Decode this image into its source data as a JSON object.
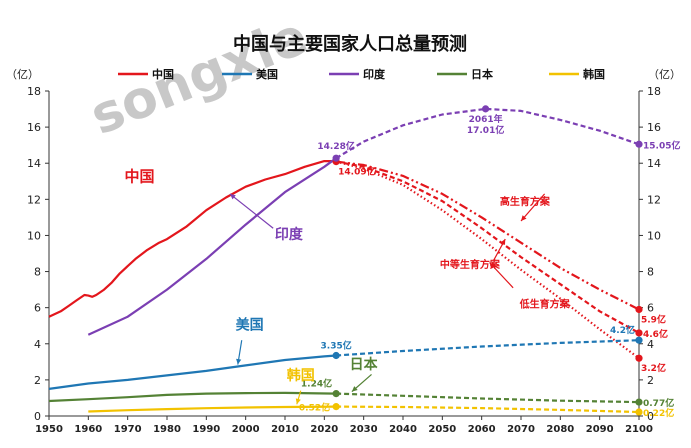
{
  "chart_data": {
    "type": "line",
    "title": "中国与主要国家人口总量预测",
    "unit_left": "（亿）",
    "unit_right": "（亿）",
    "watermark": "songxie",
    "x_range": [
      1950,
      2100
    ],
    "x_ticks": [
      1950,
      1960,
      1970,
      1980,
      1990,
      2000,
      2010,
      2020,
      2030,
      2040,
      2050,
      2060,
      2070,
      2080,
      2090,
      2100
    ],
    "y_range": [
      0,
      18
    ],
    "y_ticks": [
      0,
      2,
      4,
      6,
      8,
      10,
      12,
      14,
      16,
      18
    ],
    "grid": false,
    "legend_position": "top",
    "legend": [
      {
        "label": "中国",
        "color": "#e3161c"
      },
      {
        "label": "美国",
        "color": "#1f77b4"
      },
      {
        "label": "印度",
        "color": "#7b3fb3"
      },
      {
        "label": "日本",
        "color": "#548235"
      },
      {
        "label": "韩国",
        "color": "#f2c200"
      }
    ],
    "series": [
      {
        "name": "中国",
        "color": "#e3161c",
        "style": "solid",
        "x": [
          1950,
          1953,
          1955,
          1957,
          1959,
          1960,
          1961,
          1962,
          1964,
          1966,
          1968,
          1970,
          1972,
          1975,
          1978,
          1980,
          1985,
          1990,
          1995,
          2000,
          2005,
          2010,
          2015,
          2020,
          2022,
          2023
        ],
        "y": [
          5.5,
          5.8,
          6.1,
          6.4,
          6.7,
          6.67,
          6.6,
          6.7,
          7.0,
          7.4,
          7.9,
          8.3,
          8.7,
          9.2,
          9.6,
          9.8,
          10.5,
          11.4,
          12.1,
          12.7,
          13.1,
          13.4,
          13.8,
          14.12,
          14.12,
          14.09
        ]
      },
      {
        "name": "高生育方案",
        "color": "#e3161c",
        "style": "dashdot",
        "x": [
          2023,
          2030,
          2040,
          2050,
          2060,
          2070,
          2080,
          2090,
          2100
        ],
        "y": [
          14.09,
          13.9,
          13.3,
          12.3,
          11.0,
          9.6,
          8.2,
          7.0,
          5.9
        ]
      },
      {
        "name": "中等生育方案",
        "color": "#e3161c",
        "style": "dashed",
        "x": [
          2023,
          2030,
          2040,
          2050,
          2060,
          2070,
          2080,
          2090,
          2100
        ],
        "y": [
          14.09,
          13.8,
          13.0,
          11.9,
          10.4,
          8.8,
          7.3,
          5.8,
          4.6
        ]
      },
      {
        "name": "低生育方案",
        "color": "#e3161c",
        "style": "dotted",
        "x": [
          2023,
          2030,
          2040,
          2050,
          2060,
          2070,
          2080,
          2090,
          2100
        ],
        "y": [
          14.09,
          13.7,
          12.8,
          11.4,
          9.8,
          8.1,
          6.5,
          4.8,
          3.2
        ]
      },
      {
        "name": "美国",
        "color": "#1f77b4",
        "style": "solid",
        "x": [
          1950,
          1960,
          1970,
          1980,
          1990,
          2000,
          2010,
          2020,
          2023
        ],
        "y": [
          1.5,
          1.8,
          2.0,
          2.25,
          2.5,
          2.8,
          3.1,
          3.3,
          3.35
        ]
      },
      {
        "name": "美国预测",
        "color": "#1f77b4",
        "style": "dashed",
        "x": [
          2023,
          2040,
          2060,
          2080,
          2100
        ],
        "y": [
          3.35,
          3.6,
          3.85,
          4.05,
          4.2
        ]
      },
      {
        "name": "印度",
        "color": "#7b3fb3",
        "style": "solid",
        "x": [
          1960,
          1970,
          1980,
          1990,
          2000,
          2010,
          2020,
          2023
        ],
        "y": [
          4.5,
          5.5,
          7.0,
          8.7,
          10.6,
          12.4,
          13.8,
          14.28
        ]
      },
      {
        "name": "印度预测",
        "color": "#7b3fb3",
        "style": "dashed",
        "x": [
          2023,
          2030,
          2040,
          2050,
          2061,
          2070,
          2080,
          2090,
          2100
        ],
        "y": [
          14.28,
          15.2,
          16.1,
          16.7,
          17.01,
          16.9,
          16.4,
          15.8,
          15.05
        ]
      },
      {
        "name": "日本",
        "color": "#548235",
        "style": "solid",
        "x": [
          1950,
          1960,
          1970,
          1980,
          1990,
          2000,
          2010,
          2023
        ],
        "y": [
          0.83,
          0.93,
          1.04,
          1.17,
          1.24,
          1.27,
          1.28,
          1.24
        ]
      },
      {
        "name": "日本预测",
        "color": "#548235",
        "style": "dashed",
        "x": [
          2023,
          2040,
          2060,
          2080,
          2100
        ],
        "y": [
          1.24,
          1.12,
          0.97,
          0.85,
          0.77
        ]
      },
      {
        "name": "韩国",
        "color": "#f2c200",
        "style": "solid",
        "x": [
          1960,
          1970,
          1980,
          1990,
          2000,
          2010,
          2023
        ],
        "y": [
          0.25,
          0.32,
          0.38,
          0.43,
          0.47,
          0.5,
          0.52
        ]
      },
      {
        "name": "韩国预测",
        "color": "#f2c200",
        "style": "dashed",
        "x": [
          2023,
          2040,
          2060,
          2080,
          2100
        ],
        "y": [
          0.52,
          0.5,
          0.44,
          0.34,
          0.22
        ]
      }
    ],
    "markers": [
      {
        "x": 2023,
        "y": 14.09,
        "color": "#e3161c"
      },
      {
        "x": 2023,
        "y": 14.28,
        "color": "#7b3fb3"
      },
      {
        "x": 2061,
        "y": 17.01,
        "color": "#7b3fb3"
      },
      {
        "x": 2100,
        "y": 15.05,
        "color": "#7b3fb3"
      },
      {
        "x": 2023,
        "y": 3.35,
        "color": "#1f77b4"
      },
      {
        "x": 2100,
        "y": 4.2,
        "color": "#1f77b4"
      },
      {
        "x": 2023,
        "y": 1.24,
        "color": "#548235"
      },
      {
        "x": 2100,
        "y": 0.77,
        "color": "#548235"
      },
      {
        "x": 2023,
        "y": 0.52,
        "color": "#f2c200"
      },
      {
        "x": 2100,
        "y": 0.22,
        "color": "#f2c200"
      },
      {
        "x": 2100,
        "y": 5.9,
        "color": "#e3161c"
      },
      {
        "x": 2100,
        "y": 4.6,
        "color": "#e3161c"
      },
      {
        "x": 2100,
        "y": 3.2,
        "color": "#e3161c"
      }
    ],
    "annotations": [
      {
        "text": "14.28亿",
        "x": 2023,
        "y": 14.28,
        "color": "#7b3fb3",
        "anchor": "top"
      },
      {
        "text": "14.09亿",
        "x": 2023,
        "y": 14.09,
        "color": "#e3161c",
        "anchor": "below-right"
      },
      {
        "text": "2061年",
        "x": 2061,
        "y": 17.01,
        "color": "#7b3fb3",
        "anchor": "below"
      },
      {
        "text": "17.01亿",
        "x": 2061,
        "y": 17.01,
        "color": "#7b3fb3",
        "anchor": "below2"
      },
      {
        "text": "15.05亿",
        "x": 2100,
        "y": 15.05,
        "color": "#7b3fb3",
        "anchor": "right"
      },
      {
        "text": "3.35亿",
        "x": 2023,
        "y": 3.35,
        "color": "#1f77b4",
        "anchor": "above"
      },
      {
        "text": "4.2亿",
        "x": 2100,
        "y": 4.2,
        "color": "#1f77b4",
        "anchor": "above-left"
      },
      {
        "text": "1.24亿",
        "x": 2023,
        "y": 1.24,
        "color": "#548235",
        "anchor": "above-left"
      },
      {
        "text": "0.77亿",
        "x": 2100,
        "y": 0.77,
        "color": "#548235",
        "anchor": "right"
      },
      {
        "text": "0.52亿",
        "x": 2023,
        "y": 0.52,
        "color": "#f2c200",
        "anchor": "left"
      },
      {
        "text": "0.22亿",
        "x": 2100,
        "y": 0.22,
        "color": "#f2c200",
        "anchor": "right"
      },
      {
        "text": "5.9亿",
        "x": 2100,
        "y": 5.9,
        "color": "#e3161c",
        "anchor": "below-right"
      },
      {
        "text": "4.6亿",
        "x": 2100,
        "y": 4.6,
        "color": "#e3161c",
        "anchor": "right"
      },
      {
        "text": "3.2亿",
        "x": 2100,
        "y": 3.2,
        "color": "#e3161c",
        "anchor": "below-right"
      }
    ],
    "inline_labels": [
      {
        "text": "中国",
        "x": 1973,
        "y": 13.0,
        "color": "#e3161c",
        "size": 15
      },
      {
        "text": "印度",
        "x": 2011,
        "y": 9.8,
        "color": "#7b3fb3",
        "size": 14
      },
      {
        "text": "美国",
        "x": 2001,
        "y": 4.8,
        "color": "#1f77b4",
        "size": 14
      },
      {
        "text": "日本",
        "x": 2030,
        "y": 2.6,
        "color": "#548235",
        "size": 14
      },
      {
        "text": "韩国",
        "x": 2014,
        "y": 2.0,
        "color": "#f2c200",
        "size": 14
      },
      {
        "text": "高生育方案",
        "x": 2071,
        "y": 11.7,
        "color": "#e3161c",
        "size": 10
      },
      {
        "text": "中等生育方案",
        "x": 2057,
        "y": 8.2,
        "color": "#e3161c",
        "size": 10
      },
      {
        "text": "低生育方案",
        "x": 2076,
        "y": 6.0,
        "color": "#e3161c",
        "size": 10
      }
    ],
    "label_arrows": [
      {
        "x1": 2076,
        "y1": 12.3,
        "x2": 2070,
        "y2": 10.8,
        "color": "#e3161c"
      },
      {
        "x1": 2063,
        "y1": 8.6,
        "x2": 2066,
        "y2": 9.8,
        "color": "#e3161c"
      },
      {
        "x1": 2068,
        "y1": 7.1,
        "x2": 2062,
        "y2": 8.5,
        "color": "#e3161c"
      },
      {
        "x1": 2007,
        "y1": 10.4,
        "x2": 1996,
        "y2": 12.3,
        "color": "#7b3fb3"
      },
      {
        "x1": 1999,
        "y1": 4.2,
        "x2": 1998,
        "y2": 2.85,
        "color": "#1f77b4"
      },
      {
        "x1": 2032,
        "y1": 2.3,
        "x2": 2027,
        "y2": 1.35,
        "color": "#548235"
      },
      {
        "x1": 2014,
        "y1": 1.4,
        "x2": 2013,
        "y2": 0.65,
        "color": "#f2c200"
      }
    ]
  }
}
